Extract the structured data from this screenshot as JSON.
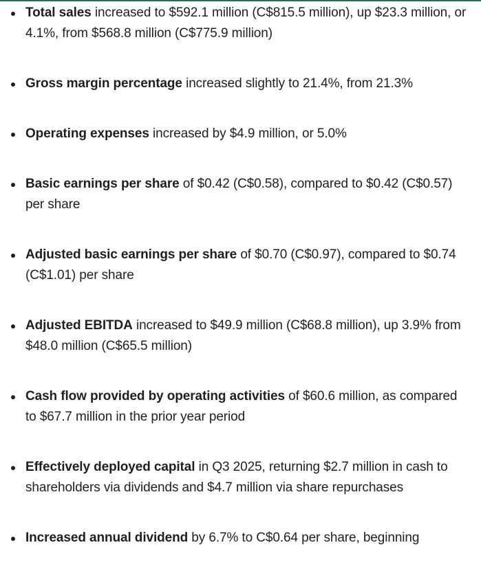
{
  "highlights": [
    {
      "term": "Total sales",
      "text": " increased to $592.1 million (C$815.5 million), up $23.3 million, or 4.1%, from $568.8 million (C$775.9 million)"
    },
    {
      "term": "Gross margin percentage",
      "text": " increased slightly to 21.4%, from 21.3%"
    },
    {
      "term": "Operating expenses",
      "text": " increased by $4.9 million, or 5.0%"
    },
    {
      "term": "Basic earnings per share",
      "text": " of $0.42 (C$0.58), compared to $0.42 (C$0.57) per share"
    },
    {
      "term": "Adjusted basic earnings per share",
      "text": " of $0.70 (C$0.97), compared to $0.74 (C$1.01) per share"
    },
    {
      "term": "Adjusted EBITDA",
      "text": " increased to $49.9 million (C$68.8 million), up 3.9% from $48.0 million (C$65.5 million)"
    },
    {
      "term": "Cash flow provided by operating activities",
      "text": " of $60.6 million, as compared to $67.7 million in the prior year period"
    },
    {
      "term": "Effectively deployed capital",
      "text": " in Q3 2025, returning $2.7 million in cash to shareholders via dividends and $4.7 million via share repurchases"
    },
    {
      "term": "Increased annual dividend",
      "text": " by 6.7% to C$0.64 per share, beginning"
    }
  ]
}
